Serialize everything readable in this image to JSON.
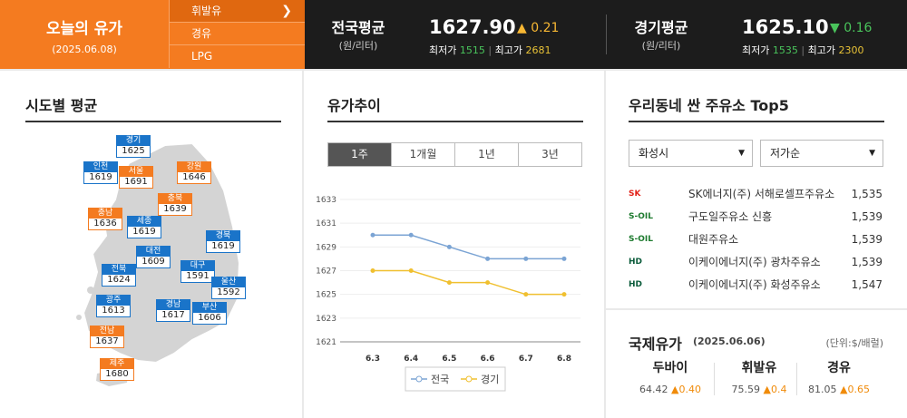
{
  "header": {
    "title": "오늘의 유가",
    "date": "(2025.06.08)",
    "fuel_tabs": [
      {
        "label": "휘발유",
        "active": true
      },
      {
        "label": "경유",
        "active": false
      },
      {
        "label": "LPG",
        "active": false
      }
    ],
    "national": {
      "name": "전국평균",
      "unit": "(원/리터)",
      "price": "1627.90",
      "change": "0.21",
      "direction": "up",
      "min_label": "최저가",
      "min": "1515",
      "max_label": "최고가",
      "max": "2681"
    },
    "regional": {
      "name": "경기평균",
      "unit": "(원/리터)",
      "price": "1625.10",
      "change": "0.16",
      "direction": "down",
      "min_label": "최저가",
      "min": "1535",
      "max_label": "최고가",
      "max": "2300"
    }
  },
  "regions": {
    "title": "시도별 평균",
    "items": [
      {
        "name": "경기",
        "price": "1625",
        "color": "blue"
      },
      {
        "name": "인천",
        "price": "1619",
        "color": "blue"
      },
      {
        "name": "서울",
        "price": "1691",
        "color": "orange"
      },
      {
        "name": "강원",
        "price": "1646",
        "color": "orange"
      },
      {
        "name": "충북",
        "price": "1639",
        "color": "orange"
      },
      {
        "name": "충남",
        "price": "1636",
        "color": "orange"
      },
      {
        "name": "세종",
        "price": "1619",
        "color": "blue"
      },
      {
        "name": "경북",
        "price": "1619",
        "color": "blue"
      },
      {
        "name": "대전",
        "price": "1609",
        "color": "blue"
      },
      {
        "name": "전북",
        "price": "1624",
        "color": "blue"
      },
      {
        "name": "대구",
        "price": "1591",
        "color": "blue"
      },
      {
        "name": "울산",
        "price": "1592",
        "color": "blue"
      },
      {
        "name": "광주",
        "price": "1613",
        "color": "blue"
      },
      {
        "name": "경남",
        "price": "1617",
        "color": "blue"
      },
      {
        "name": "부산",
        "price": "1606",
        "color": "blue"
      },
      {
        "name": "전남",
        "price": "1637",
        "color": "orange"
      },
      {
        "name": "제주",
        "price": "1680",
        "color": "orange"
      }
    ]
  },
  "trend": {
    "title": "유가추이",
    "tabs": [
      "1주",
      "1개월",
      "1년",
      "3년"
    ],
    "active_tab": 0
  },
  "chart_data": {
    "type": "line",
    "x": [
      "6.3",
      "6.4",
      "6.5",
      "6.6",
      "6.7",
      "6.8"
    ],
    "series": [
      {
        "name": "전국",
        "values": [
          1630,
          1630,
          1629,
          1628,
          1628,
          1628
        ],
        "color": "#7ba4d4"
      },
      {
        "name": "경기",
        "values": [
          1627,
          1627,
          1626,
          1626,
          1625,
          1625
        ],
        "color": "#f0c030"
      }
    ],
    "yticks": [
      "1633",
      "1631",
      "1629",
      "1627",
      "1625",
      "1623",
      "1621"
    ],
    "ylim": [
      1621,
      1633
    ],
    "legend": "bottom"
  },
  "stations": {
    "title": "우리동네 싼 주유소 Top5",
    "area": "화성시",
    "sort": "저가순",
    "items": [
      {
        "brand": "SK에너지",
        "logo": "SK",
        "name": "SK에너지(주) 서해로셀프주유소",
        "price": "1,535"
      },
      {
        "brand": "S-OIL",
        "logo": "S-OIL",
        "name": "구도일주유소 신흥",
        "price": "1,539"
      },
      {
        "brand": "S-OIL",
        "logo": "S-OIL",
        "name": "대원주유소",
        "price": "1,539"
      },
      {
        "brand": "HD",
        "logo": "HD",
        "name": "이케이에너지(주) 광차주유소",
        "price": "1,539"
      },
      {
        "brand": "HD",
        "logo": "HD",
        "name": "이케이에너지(주) 화성주유소",
        "price": "1,547"
      }
    ]
  },
  "international": {
    "title": "국제유가",
    "date": "(2025.06.06)",
    "unit": "(단위:$/배럴)",
    "items": [
      {
        "name": "두바이",
        "price": "64.42",
        "change": "0.40"
      },
      {
        "name": "휘발유",
        "price": "75.59",
        "change": "0.4"
      },
      {
        "name": "경유",
        "price": "81.05",
        "change": "0.65"
      }
    ]
  }
}
